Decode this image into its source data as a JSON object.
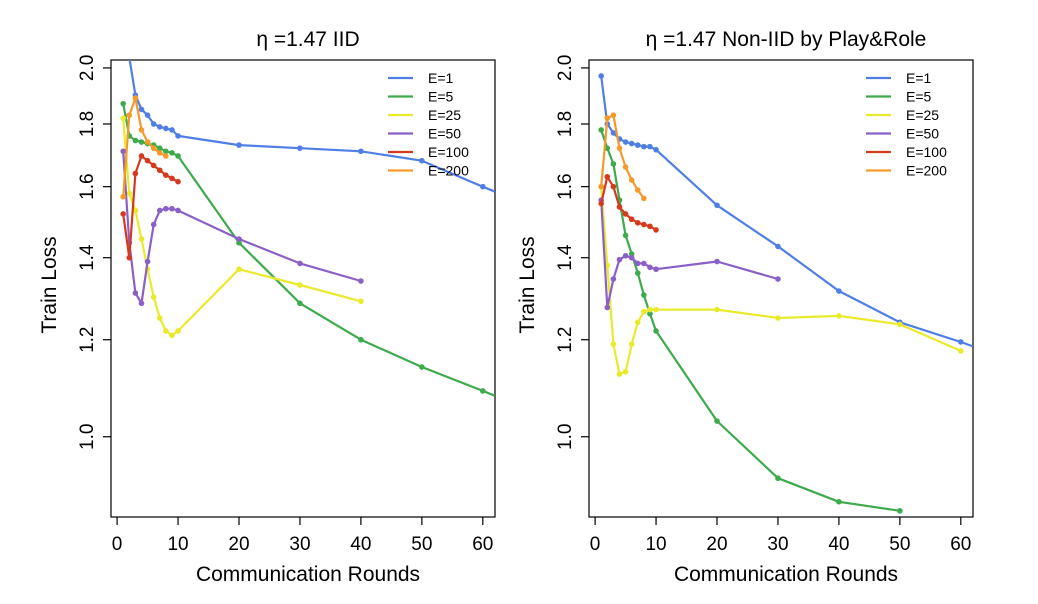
{
  "chart_data": [
    {
      "type": "line",
      "title": "η =1.47 IID",
      "xlabel": "Communication Rounds",
      "ylabel": "Train Loss",
      "xlim": [
        -1,
        62
      ],
      "ylim": [
        0.86,
        2.03
      ],
      "y_scale": "log",
      "grid": false,
      "legend_position": "top-right",
      "x_ticks": [
        0,
        10,
        20,
        30,
        40,
        50,
        60
      ],
      "y_ticks": [
        1.0,
        1.2,
        1.4,
        1.6,
        1.8,
        2.0
      ],
      "x_tick_labels": [
        "0",
        "10",
        "20",
        "30",
        "40",
        "50",
        "60"
      ],
      "y_tick_labels": [
        "1.0",
        "1.2",
        "1.4",
        "1.6",
        "1.8",
        "2.0"
      ],
      "series": [
        {
          "name": "E=1",
          "color": "#4f7fe6",
          "x": [
            1,
            2,
            3,
            4,
            5,
            6,
            7,
            8,
            9,
            10,
            20,
            30,
            40,
            50,
            60,
            62
          ],
          "y": [
            2.3,
            2.04,
            1.9,
            1.85,
            1.83,
            1.8,
            1.79,
            1.785,
            1.78,
            1.76,
            1.73,
            1.72,
            1.71,
            1.68,
            1.6,
            1.585
          ],
          "points": 15
        },
        {
          "name": "E=5",
          "color": "#3daa4c",
          "x": [
            1,
            2,
            3,
            4,
            5,
            6,
            7,
            8,
            9,
            10,
            20,
            30,
            40,
            50,
            60,
            62
          ],
          "y": [
            1.87,
            1.76,
            1.745,
            1.74,
            1.735,
            1.73,
            1.72,
            1.71,
            1.705,
            1.695,
            1.44,
            1.285,
            1.2,
            1.14,
            1.09,
            1.08
          ],
          "points": 15
        },
        {
          "name": "E=25",
          "color": "#eaea2d",
          "x": [
            1,
            2,
            3,
            4,
            5,
            6,
            7,
            8,
            9,
            10,
            20,
            30,
            40
          ],
          "y": [
            1.82,
            1.58,
            1.53,
            1.45,
            1.37,
            1.3,
            1.25,
            1.22,
            1.21,
            1.22,
            1.37,
            1.33,
            1.29
          ]
        },
        {
          "name": "E=50",
          "color": "#8a60c8",
          "x": [
            1,
            2,
            3,
            4,
            5,
            6,
            7,
            8,
            9,
            10,
            20,
            30,
            40
          ],
          "y": [
            1.71,
            1.44,
            1.31,
            1.285,
            1.39,
            1.49,
            1.53,
            1.535,
            1.535,
            1.53,
            1.45,
            1.385,
            1.34
          ]
        },
        {
          "name": "E=100",
          "color": "#d63a1e",
          "x": [
            1,
            2,
            3,
            4,
            5,
            6,
            7,
            8,
            9,
            10
          ],
          "y": [
            1.52,
            1.4,
            1.64,
            1.695,
            1.68,
            1.665,
            1.65,
            1.635,
            1.625,
            1.615
          ]
        },
        {
          "name": "E=200",
          "color": "#f59a2a",
          "x": [
            1,
            2,
            3,
            4,
            5,
            6,
            7,
            8
          ],
          "y": [
            1.57,
            1.83,
            1.89,
            1.78,
            1.74,
            1.72,
            1.705,
            1.695
          ]
        }
      ]
    },
    {
      "type": "line",
      "title": "η =1.47 Non-IID by Play&Role",
      "xlabel": "Communication Rounds",
      "ylabel": "Train Loss",
      "xlim": [
        -1,
        62
      ],
      "ylim": [
        0.86,
        2.03
      ],
      "y_scale": "log",
      "grid": false,
      "legend_position": "top-right",
      "x_ticks": [
        0,
        10,
        20,
        30,
        40,
        50,
        60
      ],
      "y_ticks": [
        1.0,
        1.2,
        1.4,
        1.6,
        1.8,
        2.0
      ],
      "x_tick_labels": [
        "0",
        "10",
        "20",
        "30",
        "40",
        "50",
        "60"
      ],
      "y_tick_labels": [
        "1.0",
        "1.2",
        "1.4",
        "1.6",
        "1.8",
        "2.0"
      ],
      "series": [
        {
          "name": "E=1",
          "color": "#4f7fe6",
          "x": [
            1,
            2,
            3,
            4,
            5,
            6,
            7,
            8,
            9,
            10,
            20,
            30,
            40,
            50,
            60,
            62
          ],
          "y": [
            1.97,
            1.8,
            1.77,
            1.75,
            1.74,
            1.735,
            1.73,
            1.725,
            1.725,
            1.715,
            1.545,
            1.43,
            1.315,
            1.24,
            1.195,
            1.185
          ],
          "points": 15
        },
        {
          "name": "E=5",
          "color": "#3daa4c",
          "x": [
            1,
            2,
            3,
            4,
            5,
            6,
            7,
            8,
            9,
            10,
            20,
            30,
            40,
            50
          ],
          "y": [
            1.78,
            1.72,
            1.67,
            1.56,
            1.46,
            1.41,
            1.36,
            1.305,
            1.26,
            1.22,
            1.03,
            0.925,
            0.885,
            0.87
          ]
        },
        {
          "name": "E=25",
          "color": "#eaea2d",
          "x": [
            1,
            2,
            3,
            4,
            5,
            6,
            7,
            8,
            9,
            10,
            20,
            30,
            40,
            50,
            60
          ],
          "y": [
            1.6,
            1.38,
            1.19,
            1.125,
            1.13,
            1.19,
            1.24,
            1.265,
            1.27,
            1.27,
            1.27,
            1.25,
            1.255,
            1.235,
            1.175
          ]
        },
        {
          "name": "E=50",
          "color": "#8a60c8",
          "x": [
            1,
            2,
            3,
            4,
            5,
            6,
            7,
            8,
            9,
            10,
            20,
            30
          ],
          "y": [
            1.56,
            1.275,
            1.345,
            1.395,
            1.405,
            1.4,
            1.385,
            1.385,
            1.375,
            1.37,
            1.39,
            1.345
          ]
        },
        {
          "name": "E=100",
          "color": "#d63a1e",
          "x": [
            1,
            2,
            3,
            4,
            5,
            6,
            7,
            8,
            9,
            10
          ],
          "y": [
            1.55,
            1.63,
            1.6,
            1.54,
            1.52,
            1.505,
            1.495,
            1.49,
            1.485,
            1.475
          ]
        },
        {
          "name": "E=200",
          "color": "#f59a2a",
          "x": [
            1,
            2,
            3,
            4,
            5,
            6,
            7,
            8
          ],
          "y": [
            1.6,
            1.82,
            1.83,
            1.72,
            1.66,
            1.62,
            1.59,
            1.565
          ]
        }
      ]
    }
  ]
}
